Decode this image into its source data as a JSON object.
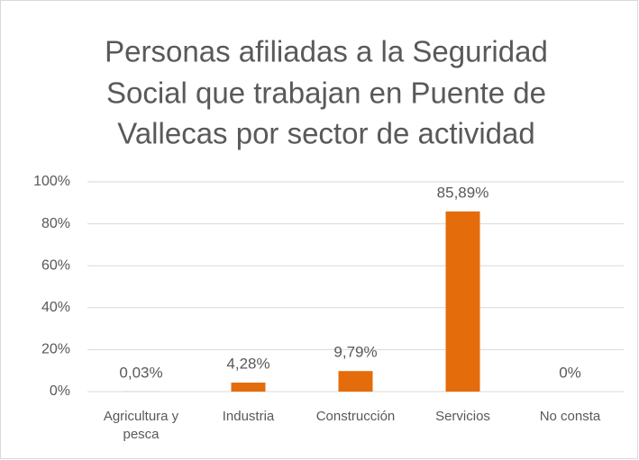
{
  "chart_data": {
    "type": "bar",
    "title": [
      "Personas afiliadas a la Seguridad",
      "Social que trabajan en Puente de",
      "Vallecas por sector de actividad"
    ],
    "categories": [
      "Agricultura y pesca",
      "Industria",
      "Construcción",
      "Servicios",
      "No consta"
    ],
    "values": [
      0.03,
      4.28,
      9.79,
      85.89,
      0
    ],
    "value_labels": [
      "0,03%",
      "4,28%",
      "9,79%",
      "85,89%",
      "0%"
    ],
    "color": "#e46c0a",
    "ylim": [
      0,
      100
    ],
    "yticks": [
      {
        "value": 0,
        "label": "0%"
      },
      {
        "value": 20,
        "label": "20%"
      },
      {
        "value": 40,
        "label": "40%"
      },
      {
        "value": 60,
        "label": "60%"
      },
      {
        "value": 80,
        "label": "80%"
      },
      {
        "value": 100,
        "label": "100%"
      }
    ],
    "grid": true
  }
}
